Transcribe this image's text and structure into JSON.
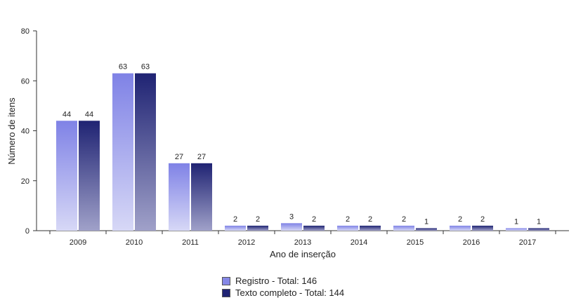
{
  "chart_data": {
    "type": "bar",
    "xlabel": "Ano de inserção",
    "ylabel": "Número de itens",
    "ylim": [
      0,
      80
    ],
    "yticks": [
      0,
      20,
      40,
      60,
      80
    ],
    "categories": [
      "2009",
      "2010",
      "2011",
      "2012",
      "2013",
      "2014",
      "2015",
      "2016",
      "2017"
    ],
    "series": [
      {
        "name": "Registro - Total: 146",
        "values": [
          44,
          63,
          27,
          2,
          3,
          2,
          2,
          2,
          1
        ],
        "color_top": "#7f82e6",
        "color_bottom": "#d7d8f6"
      },
      {
        "name": "Texto completo - Total: 144",
        "values": [
          44,
          63,
          27,
          2,
          2,
          2,
          1,
          2,
          1
        ],
        "color_top": "#1f2373",
        "color_bottom": "#a0a1c9"
      }
    ],
    "grid": false,
    "legend_position": "bottom-center"
  }
}
